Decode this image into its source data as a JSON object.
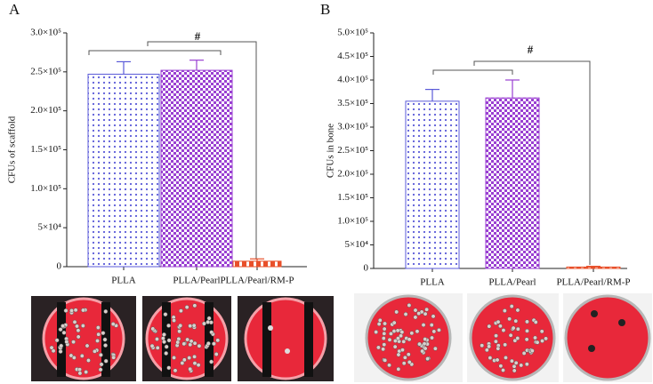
{
  "chart_data": [
    {
      "type": "bar",
      "panel_label": "A",
      "y_label": "CFUs of scaffold",
      "categories": [
        "PLLA",
        "PLLA/Pearl",
        "PLLA/Pearl/RM-P"
      ],
      "values": [
        247000,
        252000,
        7000
      ],
      "errors": [
        16000,
        13000,
        3000
      ],
      "colors": [
        "#5a5ad8",
        "#9a3fd2",
        "#e8502a"
      ],
      "ylim": [
        0,
        300000
      ],
      "yticks": [
        0,
        {
          "value": 50000,
          "label": "5×10⁴"
        },
        {
          "value": 100000,
          "label": "1.0×10⁵"
        },
        {
          "value": 150000,
          "label": "1.5×10⁵"
        },
        {
          "value": 200000,
          "label": "2.0×10⁵"
        },
        {
          "value": 250000,
          "label": "2.5×10⁵"
        },
        {
          "value": 300000,
          "label": "3.0×10⁵"
        }
      ],
      "annotation": "#"
    },
    {
      "type": "bar",
      "panel_label": "B",
      "y_label": "CFUs in bone",
      "categories": [
        "PLLA",
        "PLLA/Pearl",
        "PLLA/Pearl/RM-P"
      ],
      "values": [
        355000,
        362000,
        3000
      ],
      "errors": [
        25000,
        38000,
        1500
      ],
      "colors": [
        "#5a5ad8",
        "#9a3fd2",
        "#e8502a"
      ],
      "ylim": [
        0,
        500000
      ],
      "yticks": [
        0,
        {
          "value": 50000,
          "label": "5×10⁴"
        },
        {
          "value": 100000,
          "label": "1.0×10⁵"
        },
        {
          "value": 150000,
          "label": "1.5×10⁵"
        },
        {
          "value": 200000,
          "label": "2.0×10⁵"
        },
        {
          "value": 250000,
          "label": "2.5×10⁵"
        },
        {
          "value": 300000,
          "label": "3.0×10⁵"
        },
        {
          "value": 350000,
          "label": "3.5×10⁵"
        },
        {
          "value": 400000,
          "label": "4.0×10⁵"
        },
        {
          "value": 450000,
          "label": "4.5×10⁵"
        },
        {
          "value": 500000,
          "label": "5.0×10⁵"
        }
      ],
      "annotation": "#"
    }
  ]
}
